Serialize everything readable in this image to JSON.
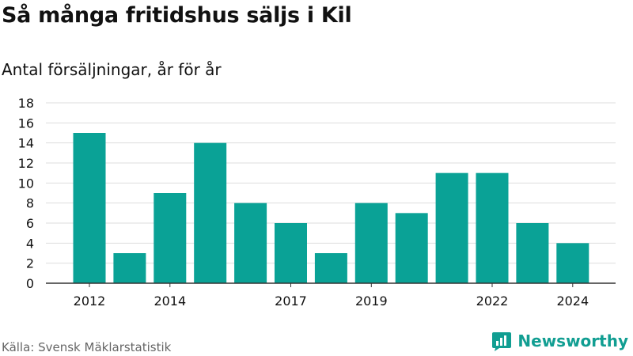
{
  "title": "Så många fritidshus säljs i Kil",
  "subtitle": "Antal försäljningar, år för år",
  "source": "Källa: Svensk Mäklarstatistik",
  "brand": {
    "name": "Newsworthy",
    "icon": "newsworthy-logo-icon"
  },
  "colors": {
    "bar": "#0aa296",
    "grid": "#dddddd",
    "axis": "#333333",
    "brand": "#119e92"
  },
  "chart_data": {
    "type": "bar",
    "categories": [
      "2012",
      "2013",
      "2014",
      "2015",
      "2016",
      "2017",
      "2018",
      "2019",
      "2020",
      "2021",
      "2022",
      "2023",
      "2024"
    ],
    "values": [
      15,
      3,
      9,
      14,
      8,
      6,
      3,
      8,
      7,
      11,
      11,
      6,
      4
    ],
    "x_tick_labels": [
      "2012",
      "2014",
      "2017",
      "2019",
      "2022",
      "2024"
    ],
    "y_ticks": [
      0,
      2,
      4,
      6,
      8,
      10,
      12,
      14,
      16,
      18
    ],
    "ylim": [
      0,
      18
    ],
    "grid": true,
    "xlabel": "",
    "ylabel": ""
  }
}
